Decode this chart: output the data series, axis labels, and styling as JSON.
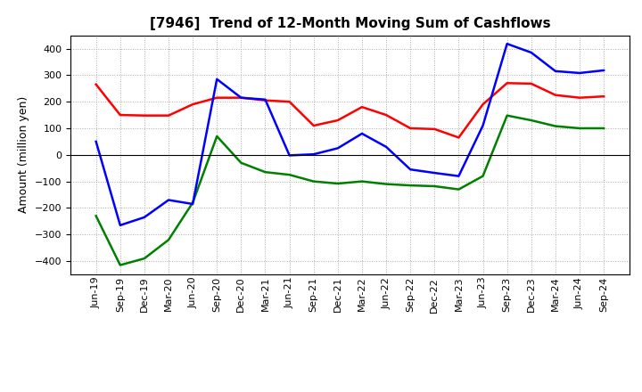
{
  "title": "[7946]  Trend of 12-Month Moving Sum of Cashflows",
  "ylabel": "Amount (million yen)",
  "x_labels": [
    "Jun-19",
    "Sep-19",
    "Dec-19",
    "Mar-20",
    "Jun-20",
    "Sep-20",
    "Dec-20",
    "Mar-21",
    "Jun-21",
    "Sep-21",
    "Dec-21",
    "Mar-22",
    "Jun-22",
    "Sep-22",
    "Dec-22",
    "Mar-23",
    "Jun-23",
    "Sep-23",
    "Dec-23",
    "Mar-24",
    "Jun-24",
    "Sep-24"
  ],
  "operating": [
    265,
    150,
    148,
    148,
    190,
    215,
    215,
    205,
    200,
    110,
    130,
    180,
    150,
    100,
    97,
    65,
    190,
    270,
    268,
    225,
    215,
    220
  ],
  "investing": [
    -230,
    -415,
    -390,
    -320,
    -180,
    70,
    -30,
    -65,
    -75,
    -100,
    -108,
    -100,
    -110,
    -115,
    -118,
    -130,
    -80,
    148,
    130,
    108,
    100,
    100
  ],
  "free": [
    50,
    -265,
    -235,
    -170,
    -185,
    285,
    215,
    208,
    -2,
    2,
    25,
    80,
    30,
    -55,
    -68,
    -80,
    110,
    418,
    385,
    315,
    308,
    318
  ],
  "operating_color": "#ff0000",
  "investing_color": "#008000",
  "free_color": "#0000ff",
  "ylim": [
    -450,
    450
  ],
  "yticks": [
    -400,
    -300,
    -200,
    -100,
    0,
    100,
    200,
    300,
    400
  ],
  "background_color": "#ffffff",
  "grid_color": "#aaaaaa",
  "linewidth": 1.8,
  "title_fontsize": 11,
  "ylabel_fontsize": 9,
  "tick_fontsize": 8,
  "legend_fontsize": 9
}
